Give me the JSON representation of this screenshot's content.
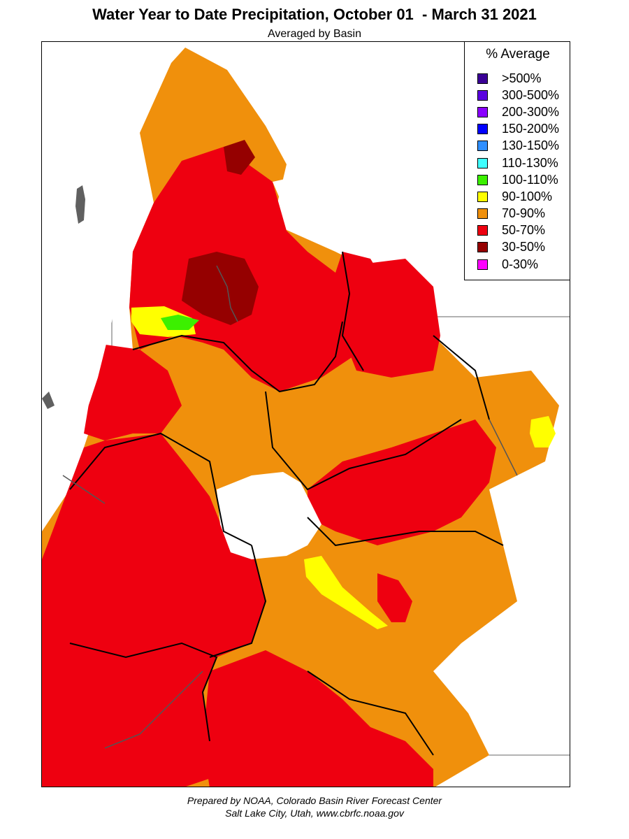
{
  "header": {
    "title": "Water Year to Date Precipitation, October 01  - March 31 2021",
    "subtitle": "Averaged by Basin"
  },
  "legend": {
    "title": "% Average",
    "items": [
      {
        "label": ">500%",
        "color": "#3a0096"
      },
      {
        "label": "300-500%",
        "color": "#5a00e0"
      },
      {
        "label": "200-300%",
        "color": "#8a00ff"
      },
      {
        "label": "150-200%",
        "color": "#0000ff"
      },
      {
        "label": "130-150%",
        "color": "#2f8fff"
      },
      {
        "label": "110-130%",
        "color": "#40ffff"
      },
      {
        "label": "100-110%",
        "color": "#3cf000"
      },
      {
        "label": "90-100%",
        "color": "#ffff00"
      },
      {
        "label": "70-90%",
        "color": "#f0900c"
      },
      {
        "label": "50-70%",
        "color": "#ee0010"
      },
      {
        "label": "30-50%",
        "color": "#950000"
      },
      {
        "label": "0-30%",
        "color": "#ff00ff"
      }
    ]
  },
  "credits": {
    "line1": "Prepared by NOAA, Colorado Basin River Forecast Center",
    "line2": "Salt Lake City, Utah, www.cbrfc.noaa.gov"
  }
}
